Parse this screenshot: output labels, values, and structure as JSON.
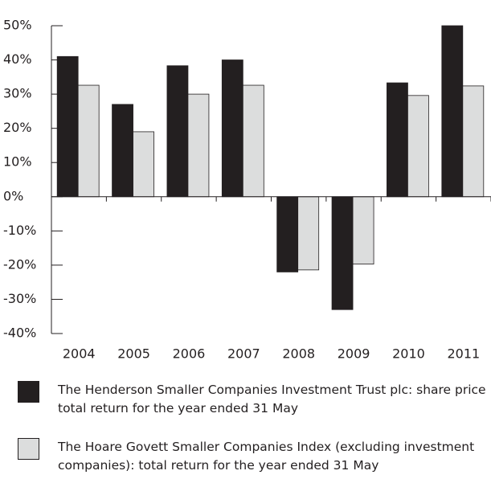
{
  "chart_data": {
    "type": "bar",
    "categories": [
      "2004",
      "2005",
      "2006",
      "2007",
      "2008",
      "2009",
      "2010",
      "2011"
    ],
    "series": [
      {
        "name": "The Henderson Smaller Companies Investment Trust plc: share price total return for the year ended 31 May",
        "color": "#231f20",
        "values": [
          41,
          27,
          38.3,
          40,
          -22,
          -33,
          33.3,
          50
        ]
      },
      {
        "name": "The Hoare Govett Smaller Companies Index (excluding investment companies): total return for the year ended 31 May",
        "color": "#dcdddd",
        "values": [
          32.6,
          19,
          30,
          32.6,
          -21.4,
          -19.7,
          29.6,
          32.4
        ]
      }
    ],
    "ylim": [
      -40,
      50
    ],
    "yticks": [
      {
        "value": -40,
        "label": "-40%"
      },
      {
        "value": -30,
        "label": "-30%"
      },
      {
        "value": -20,
        "label": "-20%"
      },
      {
        "value": -10,
        "label": "-10%"
      },
      {
        "value": 0,
        "label": "0%"
      },
      {
        "value": 10,
        "label": "10%"
      },
      {
        "value": 20,
        "label": "20%"
      },
      {
        "value": 30,
        "label": "30%"
      },
      {
        "value": 40,
        "label": "40%"
      },
      {
        "value": 50,
        "label": "50%"
      }
    ],
    "grid": false
  }
}
